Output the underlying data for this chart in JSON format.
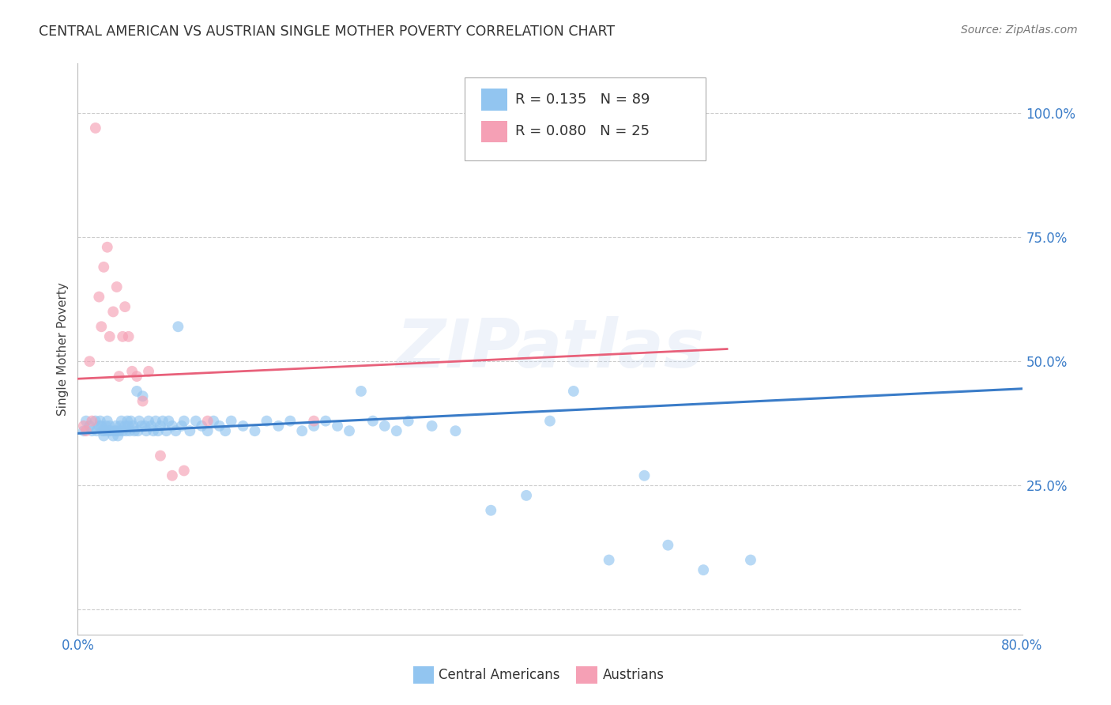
{
  "title": "CENTRAL AMERICAN VS AUSTRIAN SINGLE MOTHER POVERTY CORRELATION CHART",
  "source": "Source: ZipAtlas.com",
  "ylabel": "Single Mother Poverty",
  "watermark": "ZIPatlas",
  "x_min": 0.0,
  "x_max": 0.8,
  "y_min": -0.05,
  "y_max": 1.1,
  "x_ticks": [
    0.0,
    0.2,
    0.4,
    0.6,
    0.8
  ],
  "x_tick_labels": [
    "0.0%",
    "",
    "",
    "",
    "80.0%"
  ],
  "y_ticks": [
    0.0,
    0.25,
    0.5,
    0.75,
    1.0
  ],
  "y_tick_labels": [
    "",
    "25.0%",
    "50.0%",
    "75.0%",
    "100.0%"
  ],
  "blue_color": "#92C5F0",
  "pink_color": "#F5A0B5",
  "blue_line_color": "#3A7CC8",
  "pink_line_color": "#E8607A",
  "legend_r_blue": "0.135",
  "legend_n_blue": "89",
  "legend_r_pink": "0.080",
  "legend_n_pink": "25",
  "grid_color": "#CCCCCC",
  "background_color": "#FFFFFF",
  "blue_points_x": [
    0.005,
    0.007,
    0.01,
    0.012,
    0.015,
    0.016,
    0.018,
    0.019,
    0.02,
    0.021,
    0.022,
    0.023,
    0.024,
    0.025,
    0.026,
    0.027,
    0.028,
    0.03,
    0.031,
    0.032,
    0.033,
    0.034,
    0.035,
    0.036,
    0.037,
    0.038,
    0.04,
    0.041,
    0.042,
    0.043,
    0.044,
    0.045,
    0.047,
    0.048,
    0.05,
    0.051,
    0.052,
    0.054,
    0.055,
    0.057,
    0.058,
    0.06,
    0.062,
    0.064,
    0.066,
    0.068,
    0.07,
    0.072,
    0.075,
    0.077,
    0.08,
    0.083,
    0.085,
    0.088,
    0.09,
    0.095,
    0.1,
    0.105,
    0.11,
    0.115,
    0.12,
    0.125,
    0.13,
    0.14,
    0.15,
    0.16,
    0.17,
    0.18,
    0.19,
    0.2,
    0.21,
    0.22,
    0.23,
    0.24,
    0.25,
    0.26,
    0.27,
    0.28,
    0.3,
    0.32,
    0.35,
    0.38,
    0.4,
    0.42,
    0.45,
    0.48,
    0.5,
    0.53,
    0.57
  ],
  "blue_points_y": [
    0.36,
    0.38,
    0.37,
    0.36,
    0.38,
    0.36,
    0.37,
    0.38,
    0.37,
    0.36,
    0.35,
    0.36,
    0.37,
    0.38,
    0.36,
    0.37,
    0.36,
    0.35,
    0.36,
    0.37,
    0.36,
    0.35,
    0.36,
    0.37,
    0.38,
    0.36,
    0.37,
    0.36,
    0.38,
    0.37,
    0.36,
    0.38,
    0.37,
    0.36,
    0.44,
    0.36,
    0.38,
    0.37,
    0.43,
    0.37,
    0.36,
    0.38,
    0.37,
    0.36,
    0.38,
    0.36,
    0.37,
    0.38,
    0.36,
    0.38,
    0.37,
    0.36,
    0.57,
    0.37,
    0.38,
    0.36,
    0.38,
    0.37,
    0.36,
    0.38,
    0.37,
    0.36,
    0.38,
    0.37,
    0.36,
    0.38,
    0.37,
    0.38,
    0.36,
    0.37,
    0.38,
    0.37,
    0.36,
    0.44,
    0.38,
    0.37,
    0.36,
    0.38,
    0.37,
    0.36,
    0.2,
    0.23,
    0.38,
    0.44,
    0.1,
    0.27,
    0.13,
    0.08,
    0.1
  ],
  "pink_points_x": [
    0.005,
    0.007,
    0.01,
    0.012,
    0.015,
    0.018,
    0.02,
    0.022,
    0.025,
    0.027,
    0.03,
    0.033,
    0.035,
    0.038,
    0.04,
    0.043,
    0.046,
    0.05,
    0.055,
    0.06,
    0.07,
    0.08,
    0.09,
    0.11,
    0.2
  ],
  "pink_points_y": [
    0.37,
    0.36,
    0.5,
    0.38,
    0.97,
    0.63,
    0.57,
    0.69,
    0.73,
    0.55,
    0.6,
    0.65,
    0.47,
    0.55,
    0.61,
    0.55,
    0.48,
    0.47,
    0.42,
    0.48,
    0.31,
    0.27,
    0.28,
    0.38,
    0.38
  ],
  "blue_trend_x": [
    0.0,
    0.8
  ],
  "blue_trend_y": [
    0.355,
    0.445
  ],
  "pink_trend_x": [
    0.0,
    0.55
  ],
  "pink_trend_y": [
    0.465,
    0.525
  ]
}
